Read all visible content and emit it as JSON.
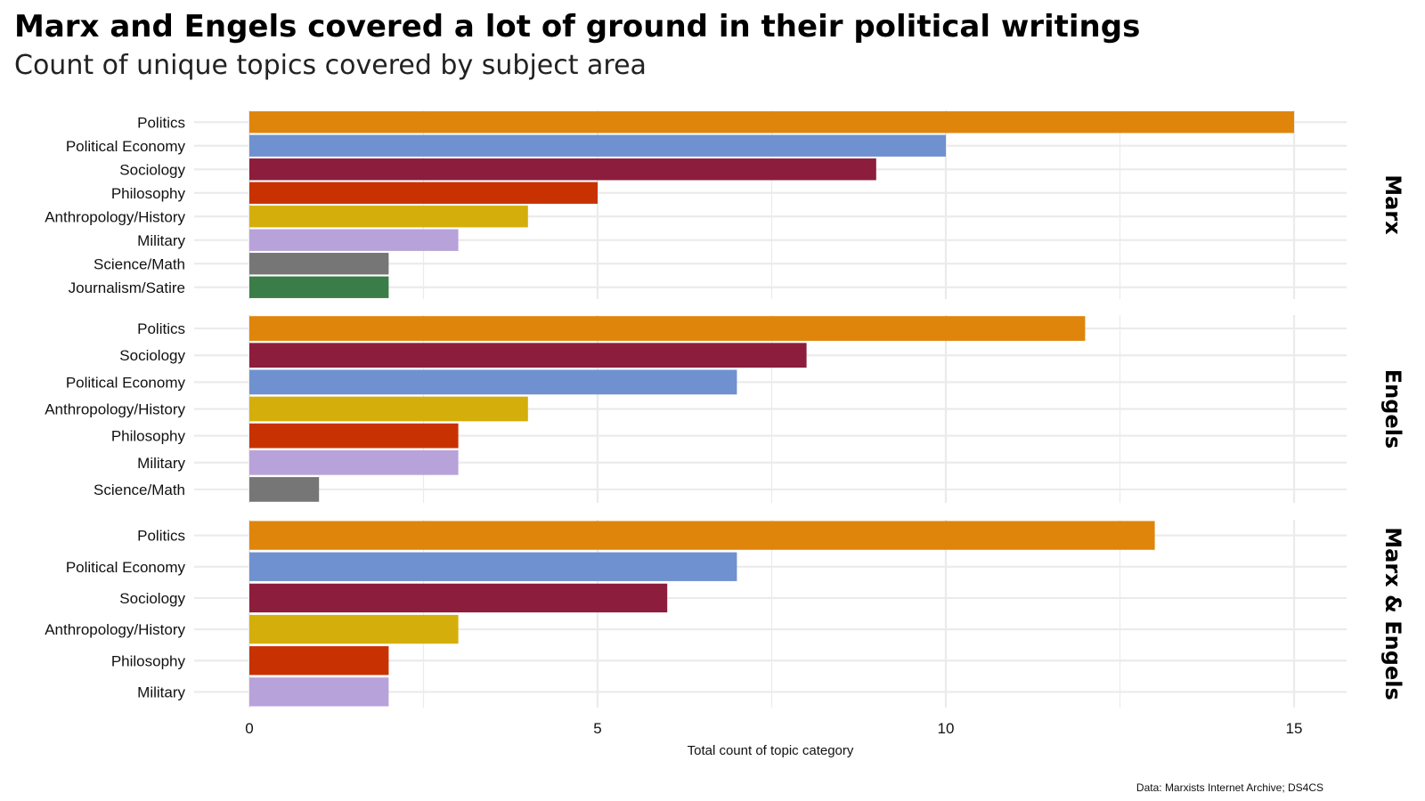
{
  "title": "Marx and Engels covered a lot of ground in their political writings",
  "subtitle": "Count of unique topics covered by subject area",
  "caption": "Data: Marxists Internet Archive; DS4CS",
  "colors": {
    "Politics": "#DF850C",
    "Political Economy": "#7091CF",
    "Sociology": "#8C1D3D",
    "Philosophy": "#C83203",
    "Anthropology/History": "#D4AF0B",
    "Military": "#B8A2DA",
    "Science/Math": "#767676",
    "Journalism/Satire": "#3B7D48",
    "gridline": "#EBEBEB"
  },
  "chart_data": {
    "type": "bar",
    "orientation": "horizontal",
    "xlabel": "Total count of topic category",
    "xlim": [
      0,
      16.5
    ],
    "xticks": [
      0,
      5,
      10,
      15
    ],
    "grid": true,
    "facets": [
      {
        "name": "Marx",
        "categories": [
          "Politics",
          "Political Economy",
          "Sociology",
          "Philosophy",
          "Anthropology/History",
          "Military",
          "Science/Math",
          "Journalism/Satire"
        ],
        "values": [
          15,
          10,
          9,
          5,
          4,
          3,
          2,
          2
        ]
      },
      {
        "name": "Engels",
        "categories": [
          "Politics",
          "Sociology",
          "Political Economy",
          "Anthropology/History",
          "Philosophy",
          "Military",
          "Science/Math"
        ],
        "values": [
          12,
          8,
          7,
          4,
          3,
          3,
          1
        ]
      },
      {
        "name": "Marx & Engels",
        "categories": [
          "Politics",
          "Political Economy",
          "Sociology",
          "Anthropology/History",
          "Philosophy",
          "Military"
        ],
        "values": [
          13,
          7,
          6,
          3,
          2,
          2
        ]
      }
    ]
  }
}
